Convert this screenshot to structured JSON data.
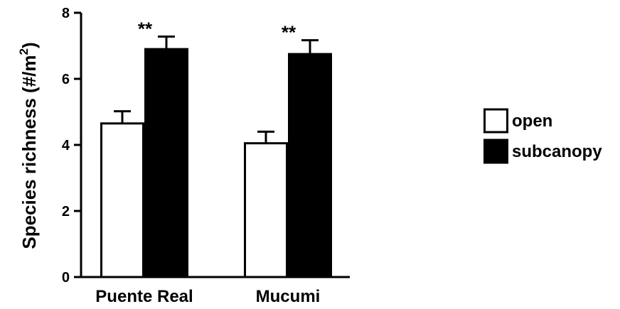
{
  "chart_data": {
    "type": "bar",
    "categories": [
      "Puente Real",
      "Mucumi"
    ],
    "series": [
      {
        "name": "open",
        "values": [
          4.65,
          4.05
        ],
        "errors": [
          0.37,
          0.35
        ],
        "color": "#ffffff"
      },
      {
        "name": "subcanopy",
        "values": [
          6.9,
          6.75
        ],
        "errors": [
          0.38,
          0.42
        ],
        "color": "#000000"
      }
    ],
    "annotations": [
      "**",
      "**"
    ],
    "ylabel": "Species richness (#/m",
    "ylabel_sup": "2",
    "ylabel_close": ")",
    "ylim": [
      0,
      8
    ],
    "yticks": [
      "0",
      "2",
      "4",
      "6",
      "8"
    ],
    "legend_position": "right",
    "grid": false
  }
}
